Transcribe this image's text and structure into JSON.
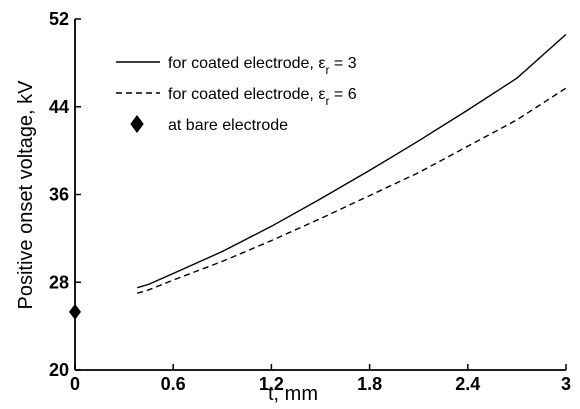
{
  "chart_data": {
    "type": "line",
    "xlabel": "t, mm",
    "ylabel": "Positive onset voltage, kV",
    "xlim": [
      0,
      3
    ],
    "ylim": [
      20,
      52
    ],
    "x_ticks": [
      "0",
      "0.6",
      "1.2",
      "1.8",
      "2.4",
      "3"
    ],
    "y_ticks": [
      "20",
      "28",
      "36",
      "44",
      "52"
    ],
    "grid": false,
    "legend_position": "top-left",
    "series": [
      {
        "name": "for coated electrode, ε_r = 3",
        "legend_main": "for coated electrode, ε",
        "legend_sub": "r",
        "legend_tail": " = 3",
        "style": "solid",
        "x": [
          0.38,
          0.45,
          0.6,
          0.9,
          1.2,
          1.5,
          1.8,
          2.1,
          2.4,
          2.7,
          3.0
        ],
        "y": [
          27.5,
          27.8,
          28.8,
          30.8,
          33.1,
          35.6,
          38.2,
          40.9,
          43.7,
          46.6,
          50.6
        ]
      },
      {
        "name": "for coated electrode, ε_r = 6",
        "legend_main": "for coated electrode, ε",
        "legend_sub": "r",
        "legend_tail": " = 6",
        "style": "dashed",
        "x": [
          0.38,
          0.45,
          0.6,
          0.9,
          1.2,
          1.5,
          1.8,
          2.1,
          2.4,
          2.7,
          3.0
        ],
        "y": [
          27.0,
          27.3,
          28.2,
          29.9,
          31.8,
          33.8,
          35.9,
          38.0,
          40.4,
          42.8,
          45.7
        ]
      },
      {
        "name": "at bare electrode",
        "legend_main": "at bare electrode",
        "style": "marker-diamond",
        "x": [
          0
        ],
        "y": [
          25.3
        ]
      }
    ]
  }
}
